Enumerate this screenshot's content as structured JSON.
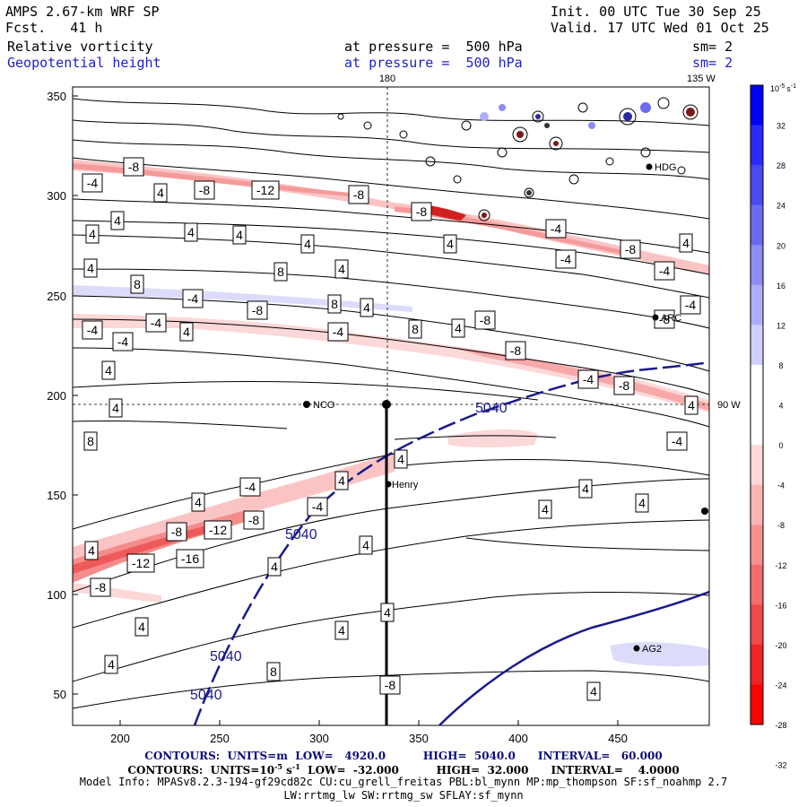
{
  "header": {
    "model_title": "AMPS 2.67-km WRF SP",
    "forecast_label": "Fcst.   41 h",
    "init_time": "Init. 00 UTC Tue 30 Sep 25",
    "valid_time": "Valid. 17 UTC Wed 01 Oct 25",
    "field1_name": "Relative vorticity",
    "field1_level": "at pressure =  500 hPa",
    "field1_smooth": "sm= 2",
    "field2_name": "Geopotential height",
    "field2_level": "at pressure =  500 hPa",
    "field2_smooth": "sm= 2"
  },
  "map": {
    "lon_labels": {
      "top_180": "180",
      "top_135w": "135 W",
      "right_90w": "90 W"
    },
    "x_ticks": [
      "200",
      "250",
      "300",
      "350",
      "400",
      "450"
    ],
    "y_ticks": [
      "350",
      "300",
      "250",
      "200",
      "150",
      "100",
      "50"
    ],
    "stations": [
      "NCO",
      "Henry",
      "HDG",
      "ARC",
      "AG2"
    ],
    "height_contour_labels": [
      "5040",
      "5040",
      "5040",
      "5040"
    ],
    "vorticity_labels": [
      {
        "t": "-8",
        "v": -8
      },
      {
        "t": "-4",
        "v": -4
      },
      {
        "t": "4",
        "v": 4
      },
      {
        "t": "-8",
        "v": -8
      },
      {
        "t": "-12",
        "v": -12
      },
      {
        "t": "-8",
        "v": -8
      },
      {
        "t": "-8",
        "v": -8
      },
      {
        "t": "4",
        "v": 4
      },
      {
        "t": "4",
        "v": 4
      },
      {
        "t": "4",
        "v": 4
      },
      {
        "t": "4",
        "v": 4
      },
      {
        "t": "-4",
        "v": -4
      },
      {
        "t": "-8",
        "v": -8
      },
      {
        "t": "4",
        "v": 4
      },
      {
        "t": "4",
        "v": 4
      },
      {
        "t": "-4",
        "v": -4
      },
      {
        "t": "4",
        "v": 4
      },
      {
        "t": "4",
        "v": 4
      },
      {
        "t": "8",
        "v": 8
      },
      {
        "t": "4",
        "v": 4
      },
      {
        "t": "-4",
        "v": -4
      },
      {
        "t": "8",
        "v": 8
      },
      {
        "t": "8",
        "v": 8
      },
      {
        "t": "4",
        "v": 4
      },
      {
        "t": "-4",
        "v": -4
      },
      {
        "t": "-8",
        "v": -8
      },
      {
        "t": "-4",
        "v": -4
      },
      {
        "t": "-4",
        "v": -4
      },
      {
        "t": "-4",
        "v": -4
      },
      {
        "t": "4",
        "v": 4
      },
      {
        "t": "-4",
        "v": -4
      },
      {
        "t": "8",
        "v": 8
      },
      {
        "t": "-8",
        "v": -8
      },
      {
        "t": "4",
        "v": 4
      },
      {
        "t": "-4",
        "v": -4
      },
      {
        "t": "-8",
        "v": -8
      },
      {
        "t": "-8",
        "v": -8
      },
      {
        "t": "4",
        "v": 4
      },
      {
        "t": "8",
        "v": 8
      },
      {
        "t": "-4",
        "v": -4
      },
      {
        "t": "-8",
        "v": -8
      },
      {
        "t": "4",
        "v": 4
      },
      {
        "t": "-4",
        "v": -4
      },
      {
        "t": "4",
        "v": 4
      },
      {
        "t": "4",
        "v": 4
      },
      {
        "t": "-4",
        "v": -4
      },
      {
        "t": "4",
        "v": 4
      },
      {
        "t": "4",
        "v": 4
      },
      {
        "t": "-8",
        "v": -8
      },
      {
        "t": "-12",
        "v": -12
      },
      {
        "t": "-8",
        "v": -8
      },
      {
        "t": "-12",
        "v": -12
      },
      {
        "t": "-16",
        "v": -16
      },
      {
        "t": "-4",
        "v": -4
      },
      {
        "t": "4",
        "v": 4
      },
      {
        "t": "-8",
        "v": -8
      },
      {
        "t": "4",
        "v": 4
      },
      {
        "t": "4",
        "v": 4
      },
      {
        "t": "4",
        "v": 4
      },
      {
        "t": "4",
        "v": 4
      },
      {
        "t": "4",
        "v": 4
      },
      {
        "t": "4",
        "v": 4
      },
      {
        "t": "4",
        "v": 4
      },
      {
        "t": "4",
        "v": 4
      },
      {
        "t": "4",
        "v": 4
      },
      {
        "t": "8",
        "v": 8
      },
      {
        "t": "-8",
        "v": -8
      },
      {
        "t": "4",
        "v": 4
      }
    ]
  },
  "colorbar": {
    "unit": "10",
    "unit_exp": "-5",
    "unit_suffix": "s",
    "unit_suffix_exp": "-1",
    "tick_labels": [
      "32",
      "28",
      "24",
      "20",
      "16",
      "12",
      "8",
      "4",
      "0",
      "-4",
      "-8",
      "-12",
      "-16",
      "-20",
      "-24",
      "-28",
      "-32"
    ],
    "colors": [
      "#0000ff",
      "#2a2aff",
      "#4a4aee",
      "#6a6af0",
      "#8c8cf4",
      "#aeaef8",
      "#d0d0fc",
      "#ffffff",
      "#ffffff",
      "#fdd8d8",
      "#fbb4b4",
      "#f89090",
      "#f56c6c",
      "#f24848",
      "#ef2424",
      "#ff0000"
    ]
  },
  "footer": {
    "contours_height": "CONTOURS:  UNITS=m  LOW=   4920.0          HIGH=  5040.0      INTERVAL=   60.000",
    "contours_vort_a": "CONTOURS:  UNITS=10",
    "contours_vort_exp1": "-5",
    "contours_vort_b": " s",
    "contours_vort_exp2": "-1",
    "contours_vort_c": "  LOW=  -32.000          HIGH=  32.000      INTERVAL=    4.0000",
    "model_info": "Model Info: MPASv8.2.3-194-gf29cd82c CU:cu_grell_freitas PBL:bl_mynn MP:mp_thompson SF:sf_noahmp 2.7",
    "model_info2": "LW:rrtmg_lw SW:rrtmg_sw SFLAY:sf_mynn"
  }
}
